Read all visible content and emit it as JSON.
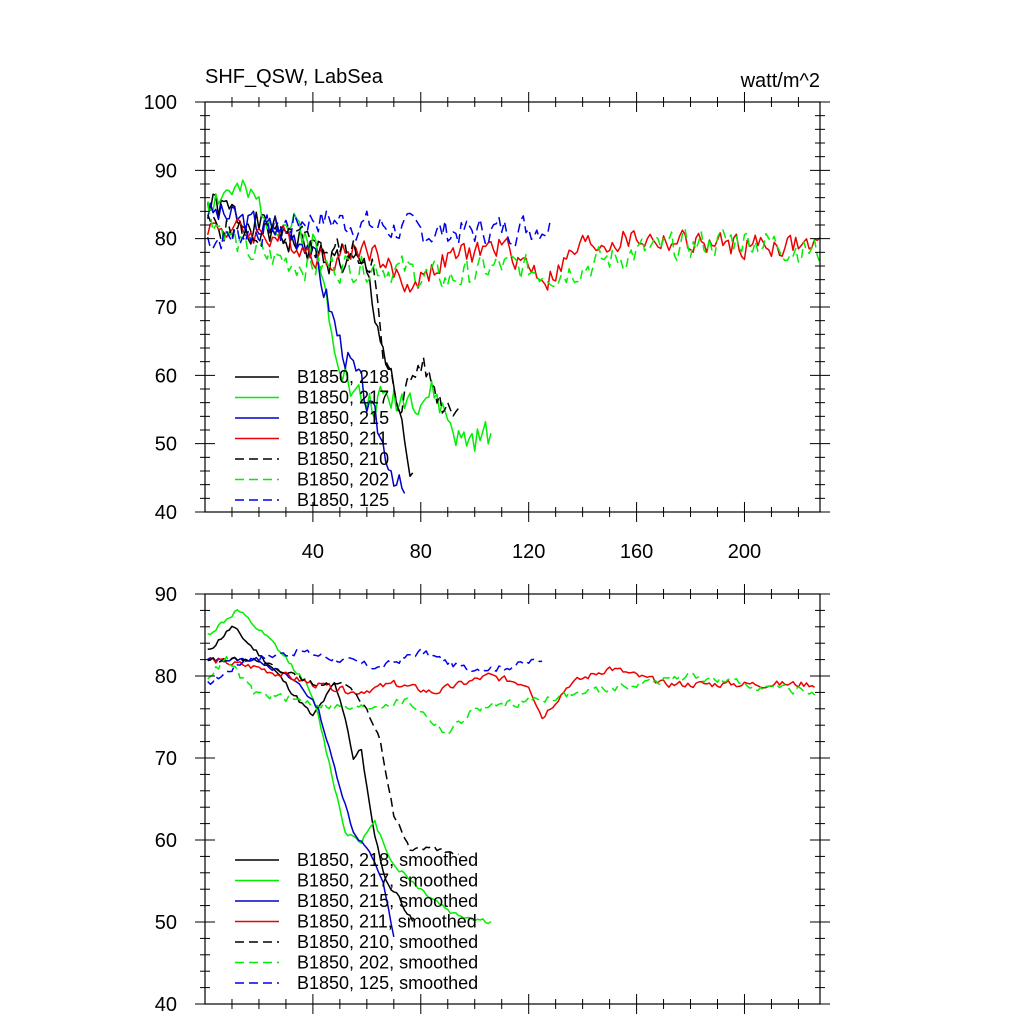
{
  "chart_data": [
    {
      "type": "line",
      "title": "SHF_QSW, LabSea",
      "units": "watt/m^2",
      "xlim": [
        0,
        228
      ],
      "ylim": [
        40,
        100
      ],
      "x_ticks": [
        40,
        80,
        120,
        160,
        200
      ],
      "x_tick_labels": [
        "40",
        "80",
        "120",
        "160",
        "200"
      ],
      "y_ticks": [
        40,
        50,
        60,
        70,
        80,
        90,
        100
      ],
      "y_tick_labels": [
        "40",
        "50",
        "60",
        "70",
        "80",
        "90",
        "100"
      ],
      "legend_position": "lower-left",
      "series": [
        {
          "name": "B1850, 218",
          "color": "#000000",
          "dash": "solid",
          "x": [
            1,
            60,
            77
          ],
          "y": [
            85,
            75,
            44
          ],
          "noise": 3.5,
          "seed": 1
        },
        {
          "name": "B1850, 217",
          "color": "#00ee00",
          "dash": "solid",
          "x": [
            1,
            10,
            40,
            48,
            55,
            62,
            75,
            85,
            95,
            106
          ],
          "y": [
            86,
            87,
            80,
            66,
            57,
            56,
            57,
            57,
            50,
            51
          ],
          "noise": 3.5,
          "seed": 2
        },
        {
          "name": "B1850, 215",
          "color": "#0000cc",
          "dash": "solid",
          "x": [
            1,
            38,
            44,
            50,
            58,
            66,
            74
          ],
          "y": [
            84,
            80,
            73,
            65,
            58,
            50,
            42
          ],
          "noise": 3.0,
          "seed": 3
        },
        {
          "name": "B1850, 211",
          "color": "#ee0000",
          "dash": "solid",
          "x": [
            1,
            30,
            45,
            60,
            75,
            90,
            110,
            127,
            140,
            160,
            190,
            228
          ],
          "y": [
            82,
            80,
            77,
            79,
            73,
            77,
            79,
            74,
            79,
            80,
            79,
            79
          ],
          "noise": 2.5,
          "seed": 4
        },
        {
          "name": "B1850, 210",
          "color": "#000000",
          "dash": "dashed",
          "x": [
            1,
            30,
            55,
            62,
            66,
            72,
            80,
            88,
            94
          ],
          "y": [
            82,
            80,
            78,
            77,
            62,
            56,
            62,
            56,
            56
          ],
          "noise": 3.0,
          "seed": 5
        },
        {
          "name": "B1850, 202",
          "color": "#00ee00",
          "dash": "dashed",
          "x": [
            1,
            15,
            40,
            65,
            90,
            110,
            130,
            160,
            200,
            228
          ],
          "y": [
            84,
            78,
            76,
            76,
            74,
            76,
            75,
            78,
            80,
            78
          ],
          "noise": 3.0,
          "seed": 6
        },
        {
          "name": "B1850, 125",
          "color": "#0000ee",
          "dash": "dashed",
          "x": [
            1,
            20,
            40,
            60,
            80,
            100,
            128
          ],
          "y": [
            80,
            81,
            83,
            82,
            81,
            81,
            82
          ],
          "noise": 3.0,
          "seed": 7
        }
      ]
    },
    {
      "type": "line",
      "title": "",
      "xlim": [
        0,
        228
      ],
      "ylim": [
        40,
        90
      ],
      "x_ticks": [
        40,
        80,
        120,
        160,
        200
      ],
      "x_tick_labels": [],
      "y_ticks": [
        40,
        50,
        60,
        70,
        80,
        90
      ],
      "y_tick_labels": [
        "40",
        "50",
        "60",
        "70",
        "80",
        "90"
      ],
      "legend_position": "lower-left",
      "series": [
        {
          "name": "B1850, 218, smoothed",
          "color": "#000000",
          "dash": "solid",
          "x": [
            1,
            10,
            25,
            40,
            48,
            52,
            55,
            58,
            62,
            67,
            72,
            77
          ],
          "y": [
            83,
            86,
            81,
            75,
            79,
            75,
            70,
            71,
            62,
            55,
            53,
            50
          ],
          "noise": 0.5,
          "seed": 11
        },
        {
          "name": "B1850, 217, smoothed",
          "color": "#00ee00",
          "dash": "solid",
          "x": [
            1,
            12,
            25,
            38,
            42,
            47,
            52,
            58,
            63,
            70,
            80,
            92,
            106
          ],
          "y": [
            85,
            88,
            84,
            79,
            75,
            68,
            61,
            60,
            62,
            57,
            54,
            51,
            50
          ],
          "noise": 0.5,
          "seed": 12
        },
        {
          "name": "B1850, 215, smoothed",
          "color": "#0000cc",
          "dash": "solid",
          "x": [
            1,
            20,
            35,
            42,
            47,
            55,
            60,
            66,
            70
          ],
          "y": [
            82,
            82,
            79,
            76,
            70,
            61,
            59,
            55,
            48
          ],
          "noise": 0.4,
          "seed": 13
        },
        {
          "name": "B1850, 211, smoothed",
          "color": "#ee0000",
          "dash": "solid",
          "x": [
            1,
            20,
            40,
            55,
            70,
            85,
            105,
            120,
            125,
            135,
            150,
            170,
            200,
            226
          ],
          "y": [
            82,
            81,
            79,
            78,
            79,
            78,
            80,
            79,
            75,
            79,
            81,
            79,
            79,
            79
          ],
          "noise": 0.6,
          "seed": 14
        },
        {
          "name": "B1850, 210, smoothed",
          "color": "#000000",
          "dash": "dashed",
          "x": [
            1,
            20,
            40,
            52,
            60,
            65,
            70,
            76,
            85,
            94
          ],
          "y": [
            82,
            82,
            79,
            79,
            76,
            72,
            63,
            59,
            59,
            58
          ],
          "noise": 0.4,
          "seed": 15
        },
        {
          "name": "B1850, 202, smoothed",
          "color": "#00ee00",
          "dash": "dashed",
          "x": [
            1,
            8,
            18,
            35,
            55,
            75,
            90,
            100,
            120,
            140,
            160,
            180,
            200,
            226
          ],
          "y": [
            80,
            82,
            78,
            77,
            76,
            77,
            73,
            76,
            77,
            78,
            79,
            80,
            79,
            78
          ],
          "noise": 0.7,
          "seed": 16
        },
        {
          "name": "B1850, 125, smoothed",
          "color": "#0000ee",
          "dash": "dashed",
          "x": [
            1,
            15,
            35,
            50,
            65,
            80,
            95,
            110,
            125
          ],
          "y": [
            79,
            82,
            83,
            82,
            81,
            83,
            81,
            81,
            82
          ],
          "noise": 0.6,
          "seed": 17
        }
      ]
    }
  ]
}
